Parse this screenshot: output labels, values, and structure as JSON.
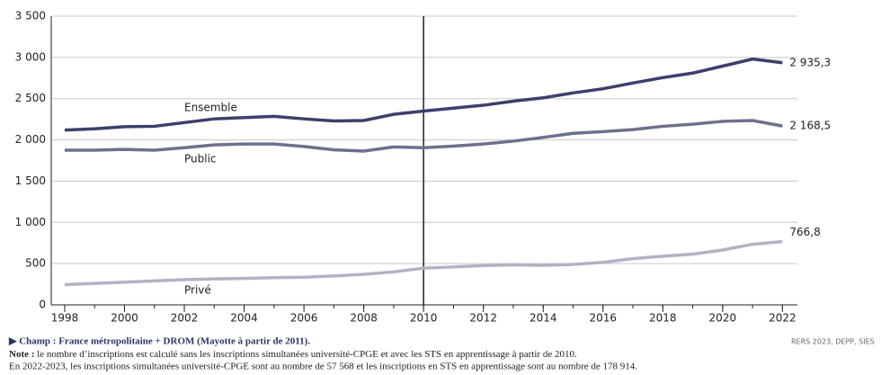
{
  "chart_data": {
    "type": "line",
    "x": [
      1998,
      1999,
      2000,
      2001,
      2002,
      2003,
      2004,
      2005,
      2006,
      2007,
      2008,
      2009,
      2010,
      2011,
      2012,
      2013,
      2014,
      2015,
      2016,
      2017,
      2018,
      2019,
      2020,
      2021,
      2022
    ],
    "series": [
      {
        "name": "Ensemble",
        "color": "#3d3f6b",
        "values": [
          2120,
          2135,
          2160,
          2165,
          2210,
          2255,
          2270,
          2285,
          2255,
          2230,
          2235,
          2310,
          2350,
          2385,
          2420,
          2470,
          2510,
          2570,
          2620,
          2690,
          2755,
          2810,
          2895,
          2980,
          2935.3
        ],
        "value_labels": [
          null,
          null,
          null,
          null,
          null,
          null,
          null,
          null,
          null,
          null,
          null,
          null,
          null,
          null,
          null,
          null,
          null,
          null,
          null,
          null,
          null,
          null,
          null,
          null,
          "2 935,3"
        ]
      },
      {
        "name": "Public",
        "color": "#6d708e",
        "values": [
          1875,
          1875,
          1885,
          1875,
          1905,
          1940,
          1950,
          1950,
          1920,
          1880,
          1865,
          1915,
          1905,
          1925,
          1950,
          1985,
          2030,
          2080,
          2100,
          2125,
          2165,
          2190,
          2225,
          2235,
          2168.5
        ],
        "value_labels": [
          null,
          null,
          null,
          null,
          null,
          null,
          null,
          null,
          null,
          null,
          null,
          null,
          null,
          null,
          null,
          null,
          null,
          null,
          null,
          null,
          null,
          null,
          null,
          null,
          "2 168,5"
        ]
      },
      {
        "name": "Privé",
        "color": "#b2b2c6",
        "values": [
          245,
          260,
          275,
          290,
          305,
          315,
          320,
          330,
          335,
          350,
          370,
          400,
          445,
          460,
          475,
          485,
          480,
          490,
          515,
          560,
          590,
          615,
          665,
          735,
          766.8
        ],
        "value_labels": [
          null,
          null,
          null,
          null,
          null,
          null,
          null,
          null,
          null,
          null,
          null,
          null,
          null,
          null,
          null,
          null,
          null,
          null,
          null,
          null,
          null,
          null,
          null,
          null,
          "766,8"
        ]
      }
    ],
    "xlim": [
      1997.55,
      2022.5
    ],
    "xticks": [
      1998,
      2000,
      2002,
      2004,
      2006,
      2008,
      2010,
      2012,
      2014,
      2016,
      2018,
      2020,
      2022
    ],
    "ylim": [
      0,
      3500
    ],
    "yticks": [
      0,
      500,
      {
        "value": 1000,
        "label": "1 000"
      },
      {
        "value": 1500,
        "label": "1 500"
      },
      {
        "value": 2000,
        "label": "2 000"
      },
      {
        "value": 2500,
        "label": "2 500"
      },
      {
        "value": 3000,
        "label": "3 000"
      },
      {
        "value": 3500,
        "label": "3 500"
      }
    ],
    "vline": 2010,
    "source": "RERS 2023, DEPP, SIES",
    "champ": "▶ Champ : France métropolitaine + DROM (Mayotte à partir de 2011).",
    "note_label": "Note :",
    "notes": [
      "le nombre d’inscriptions est calculé sans les inscriptions simultanées université-CPGE et avec les STS en apprentissage à partir de 2010.",
      "En 2022-2023, les inscriptions simultanées université-CPGE sont au nombre de 57 568 et les inscriptions en STS en apprentissage sont au nombre de 178 914."
    ]
  }
}
